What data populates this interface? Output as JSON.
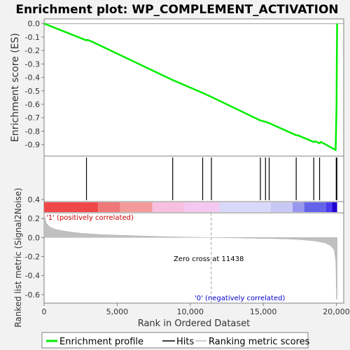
{
  "chart_data": {
    "type": "line",
    "title": "Enrichment plot: WP_COMPLEMENT_ACTIVATION",
    "xlabel": "Rank in Ordered Dataset",
    "ylabel_top": "Enrichment score (ES)",
    "ylabel_bottom": "Ranked list metric (Signal2Noise)",
    "x_range": [
      0,
      20500
    ],
    "x_ticks": [
      0,
      5000,
      10000,
      15000,
      20000
    ],
    "x_tick_labels": [
      "0",
      "5,000",
      "10,000",
      "15,000",
      "20,000"
    ],
    "es_ylim": [
      -0.985,
      0.035
    ],
    "es_ticks": [
      0.0,
      -0.1,
      -0.2,
      -0.3,
      -0.4,
      -0.5,
      -0.6,
      -0.7,
      -0.8,
      -0.9
    ],
    "es_tick_labels": [
      "0.0",
      "-0.1",
      "-0.2",
      "-0.3",
      "-0.4",
      "-0.5",
      "-0.6",
      "-0.7",
      "-0.8",
      "-0.9"
    ],
    "metric_ylim": [
      -0.69,
      0.26
    ],
    "metric_ticks": [
      0.4,
      0.2,
      0.0,
      -0.2,
      -0.4,
      -0.6
    ],
    "metric_tick_labels": [
      "0.4",
      "0.2",
      "0.0",
      "-0.2",
      "-0.4",
      "-0.6"
    ],
    "es_series": {
      "name": "Enrichment profile",
      "color": "#00ee00",
      "x": [
        0,
        2900,
        2950,
        3300,
        8800,
        10850,
        11450,
        14800,
        15150,
        15400,
        17250,
        17350,
        18450,
        18550,
        18850,
        18950,
        19950,
        20010,
        20030,
        20050
      ],
      "y": [
        0.0,
        -0.125,
        -0.12,
        -0.135,
        -0.42,
        -0.515,
        -0.545,
        -0.72,
        -0.73,
        -0.74,
        -0.83,
        -0.83,
        -0.88,
        -0.875,
        -0.89,
        -0.88,
        -0.94,
        -0.6,
        -0.25,
        0.0
      ]
    },
    "hits": [
      2900,
      8800,
      10850,
      11450,
      14800,
      15150,
      15400,
      17250,
      18450,
      18850,
      19990,
      20000,
      20010,
      20020,
      20030
    ],
    "metric_profile": {
      "x": [
        0,
        150,
        400,
        800,
        1500,
        2500,
        4000,
        6000,
        8000,
        10000,
        11438,
        13000,
        15000,
        16500,
        17500,
        18500,
        19200,
        19600,
        19850,
        19960,
        20010,
        20050
      ],
      "y": [
        0.25,
        0.15,
        0.11,
        0.085,
        0.065,
        0.045,
        0.03,
        0.02,
        0.01,
        0.004,
        0.0,
        -0.004,
        -0.01,
        -0.015,
        -0.022,
        -0.035,
        -0.055,
        -0.085,
        -0.13,
        -0.25,
        -0.65,
        -0.65
      ]
    },
    "zero_cross_x": 11438,
    "zero_cross_label": "Zero cross at 11438",
    "pos_label": "'1' (positively correlated)",
    "neg_label": "'0' (negatively correlated)",
    "colorbar": [
      {
        "x0": 0,
        "x1": 3700,
        "color": "#f04848"
      },
      {
        "x0": 3700,
        "x1": 5200,
        "color": "#f07878"
      },
      {
        "x0": 5200,
        "x1": 7400,
        "color": "#f49a9a"
      },
      {
        "x0": 7400,
        "x1": 9600,
        "color": "#f8c0e0"
      },
      {
        "x0": 9600,
        "x1": 12000,
        "color": "#f4c8f0"
      },
      {
        "x0": 12000,
        "x1": 15500,
        "color": "#d8d8f8"
      },
      {
        "x0": 15500,
        "x1": 17000,
        "color": "#c8c8f4"
      },
      {
        "x0": 17000,
        "x1": 17800,
        "color": "#9898ee"
      },
      {
        "x0": 17800,
        "x1": 19300,
        "color": "#6464ea"
      },
      {
        "x0": 19300,
        "x1": 19700,
        "color": "#4a3af0"
      },
      {
        "x0": 19700,
        "x1": 20050,
        "color": "#2000d0"
      }
    ],
    "legend": {
      "placement": "bottom",
      "items": [
        {
          "label": "Enrichment profile",
          "color": "#00ee00"
        },
        {
          "label": "Hits",
          "color": "#000000"
        },
        {
          "label": "Ranking metric scores",
          "color": "#c0c0c0"
        }
      ]
    }
  }
}
